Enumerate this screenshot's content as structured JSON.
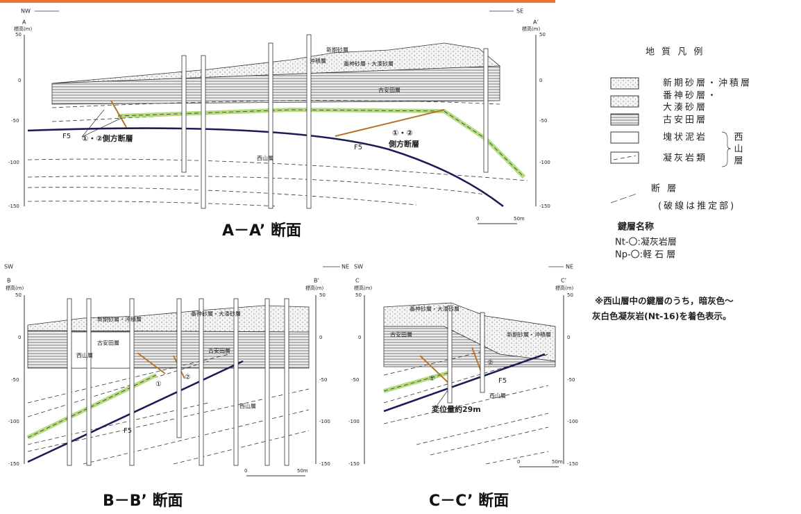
{
  "sections": [
    {
      "title": "A－A’ 断面",
      "left_dir": "NW",
      "right_dir": "SE",
      "left_end": "A",
      "right_end": "A’",
      "elevation_label": "標高(m)",
      "elevations": [
        "50",
        "0",
        "-50",
        "-100",
        "-150"
      ],
      "labels": [
        "新期砂層",
        "沖積層",
        "番神砂層・大湊砂層",
        "古安田層",
        "西山層",
        "①・②側方断層",
        "①・②",
        "側方断層",
        "F5",
        "F5"
      ],
      "scale": [
        "0",
        "50m"
      ]
    },
    {
      "title": "B－B’ 断面",
      "left_dir": "SW",
      "right_dir": "NE",
      "left_end": "B",
      "right_end": "B’",
      "elevation_label": "標高(m)",
      "elevations": [
        "50",
        "0",
        "-50",
        "-100",
        "-150"
      ],
      "labels": [
        "新期砂層・沖積層",
        "番神砂層・大湊砂層",
        "古安田層",
        "古安田層",
        "西山層",
        "西山層",
        "①",
        "②",
        "F5"
      ],
      "scale": [
        "0",
        "50m"
      ]
    },
    {
      "title": "C－C’ 断面",
      "left_dir": "SW",
      "right_dir": "NE",
      "left_end": "C",
      "right_end": "C’",
      "elevation_label": "標高(m)",
      "elevations": [
        "50",
        "0",
        "-50",
        "-100",
        "-150"
      ],
      "labels": [
        "番神砂層・大湊砂層",
        "古安田層",
        "新期砂層・沖積層",
        "西山層",
        "①",
        "②",
        "F5",
        "変位量約29m"
      ],
      "scale": [
        "0",
        "50m"
      ]
    }
  ],
  "legend": {
    "title": "地 質 凡 例",
    "items": [
      "新期砂層・沖積層",
      "番神砂層・",
      "大湊砂層",
      "古安田層",
      "塊状泥岩",
      "凝灰岩類"
    ],
    "group": "西山層",
    "fault": "断 層",
    "fault_note": "(破線は推定部)"
  },
  "key_beds": {
    "title": "鍵層名称",
    "items": [
      "Nt-〇:凝灰岩層",
      "Np-〇:軽 石 層"
    ]
  },
  "note": [
    "※西山層中の鍵層のうち，暗灰色～",
    "灰白色凝灰岩(Nt-16)を着色表示。"
  ]
}
